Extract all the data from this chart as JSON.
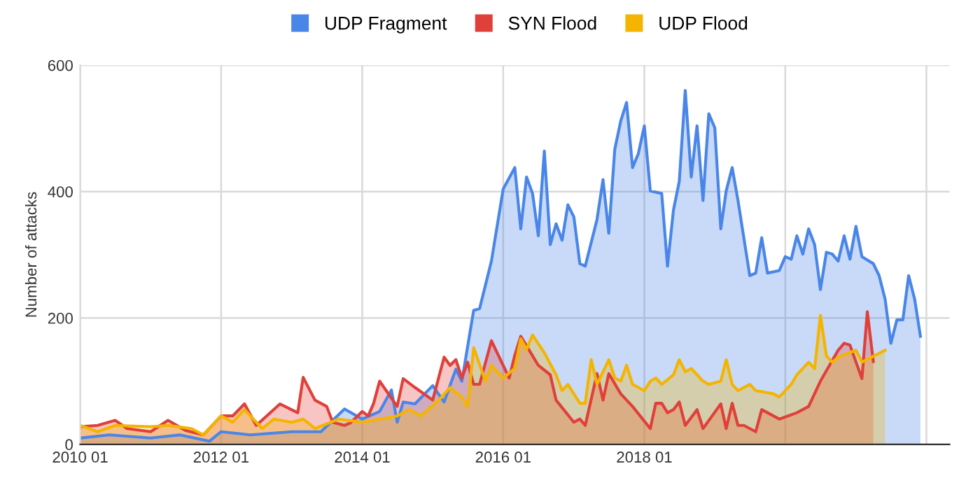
{
  "chart_data": {
    "type": "area",
    "ylabel": "Number of attacks",
    "legend": "top",
    "grid": true,
    "xlim": [
      "2010-01",
      "2022-05"
    ],
    "ylim": [
      0,
      600
    ],
    "yticks": [
      0,
      200,
      400,
      600
    ],
    "xticks": [
      {
        "value": "2010-01",
        "label": "2010 01"
      },
      {
        "value": "2012-01",
        "label": "2012 01"
      },
      {
        "value": "2014-01",
        "label": "2014 01"
      },
      {
        "value": "2016-01",
        "label": "2016 01"
      },
      {
        "value": "2018-01",
        "label": "2018 01"
      },
      {
        "value": "2020-01",
        "label": null
      },
      {
        "value": "2022-01",
        "label": null
      }
    ],
    "series": [
      {
        "name": "UDP Fragment",
        "color": "#4a86e8",
        "x": [
          "2010-01",
          "2010-06",
          "2011-01",
          "2011-06",
          "2011-11",
          "2012-01",
          "2012-06",
          "2013-01",
          "2013-06",
          "2013-08",
          "2013-10",
          "2014-01",
          "2014-04",
          "2014-06",
          "2014-07",
          "2014-08",
          "2014-10",
          "2015-01",
          "2015-03",
          "2015-05",
          "2015-06",
          "2015-08",
          "2015-09",
          "2015-11",
          "2016-01",
          "2016-03",
          "2016-04",
          "2016-05",
          "2016-06",
          "2016-07",
          "2016-08",
          "2016-09",
          "2016-10",
          "2016-11",
          "2016-12",
          "2017-01",
          "2017-02",
          "2017-03",
          "2017-05",
          "2017-06",
          "2017-07",
          "2017-08",
          "2017-09",
          "2017-10",
          "2017-11",
          "2017-12",
          "2018-01",
          "2018-02",
          "2018-04",
          "2018-05",
          "2018-06",
          "2018-07",
          "2018-08",
          "2018-09",
          "2018-10",
          "2018-11",
          "2018-12",
          "2019-01",
          "2019-02",
          "2019-03",
          "2019-04",
          "2019-05",
          "2019-07",
          "2019-08",
          "2019-09",
          "2019-10",
          "2019-12",
          "2020-01",
          "2020-02",
          "2020-03",
          "2020-04",
          "2020-05",
          "2020-06",
          "2020-07",
          "2020-08",
          "2020-09",
          "2020-10",
          "2020-11",
          "2020-12",
          "2021-01",
          "2021-02",
          "2021-04",
          "2021-05",
          "2021-06",
          "2021-07",
          "2021-08",
          "2021-09",
          "2021-10",
          "2021-11",
          "2021-12"
        ],
        "values": [
          10,
          15,
          10,
          15,
          5,
          20,
          15,
          20,
          20,
          38,
          56,
          40,
          52,
          86,
          35,
          67,
          64,
          93,
          67,
          119,
          100,
          212,
          215,
          290,
          404,
          438,
          341,
          423,
          397,
          330,
          464,
          316,
          349,
          323,
          379,
          360,
          286,
          282,
          356,
          419,
          334,
          467,
          512,
          541,
          438,
          460,
          504,
          401,
          397,
          282,
          371,
          416,
          560,
          423,
          504,
          386,
          523,
          501,
          341,
          401,
          438,
          386,
          267,
          271,
          327,
          271,
          275,
          297,
          293,
          330,
          301,
          341,
          316,
          245,
          304,
          301,
          290,
          330,
          293,
          345,
          297,
          286,
          267,
          230,
          160,
          197,
          197,
          267,
          230,
          171
        ]
      },
      {
        "name": "SYN Flood",
        "color": "#e0403a",
        "x": [
          "2010-01",
          "2010-04",
          "2010-07",
          "2010-09",
          "2011-01",
          "2011-04",
          "2011-07",
          "2011-10",
          "2012-01",
          "2012-03",
          "2012-05",
          "2012-07",
          "2012-11",
          "2013-02",
          "2013-03",
          "2013-05",
          "2013-07",
          "2013-08",
          "2013-10",
          "2013-11",
          "2014-01",
          "2014-02",
          "2014-03",
          "2014-04",
          "2014-07",
          "2014-08",
          "2014-10",
          "2015-01",
          "2015-03",
          "2015-04",
          "2015-05",
          "2015-06",
          "2015-07",
          "2015-08",
          "2015-09",
          "2015-11",
          "2016-02",
          "2016-03",
          "2016-04",
          "2016-07",
          "2016-09",
          "2016-10",
          "2017-01",
          "2017-02",
          "2017-03",
          "2017-05",
          "2017-06",
          "2017-07",
          "2017-09",
          "2017-11",
          "2018-02",
          "2018-03",
          "2018-04",
          "2018-05",
          "2018-06",
          "2018-07",
          "2018-08",
          "2018-10",
          "2018-11",
          "2019-02",
          "2019-03",
          "2019-04",
          "2019-05",
          "2019-06",
          "2019-08",
          "2019-09",
          "2019-12",
          "2020-03",
          "2020-05",
          "2020-07",
          "2020-10",
          "2020-11",
          "2020-12",
          "2021-02",
          "2021-03",
          "2021-04"
        ],
        "values": [
          28,
          30,
          38,
          25,
          20,
          38,
          22,
          15,
          45,
          45,
          64,
          30,
          64,
          50,
          106,
          70,
          60,
          35,
          30,
          34,
          52,
          45,
          65,
          100,
          60,
          104,
          90,
          70,
          138,
          125,
          134,
          105,
          130,
          95,
          95,
          164,
          105,
          141,
          171,
          125,
          110,
          70,
          35,
          40,
          30,
          112,
          70,
          112,
          80,
          60,
          25,
          65,
          65,
          50,
          55,
          67,
          30,
          55,
          25,
          64,
          25,
          65,
          30,
          30,
          20,
          55,
          40,
          50,
          60,
          100,
          149,
          160,
          157,
          104,
          210,
          131
        ]
      },
      {
        "name": "UDP Flood",
        "color": "#f4b400",
        "x": [
          "2010-01",
          "2010-04",
          "2010-07",
          "2011-01",
          "2011-04",
          "2011-08",
          "2011-10",
          "2012-01",
          "2012-03",
          "2012-05",
          "2012-08",
          "2012-10",
          "2013-01",
          "2013-03",
          "2013-05",
          "2013-09",
          "2014-01",
          "2014-04",
          "2014-07",
          "2014-09",
          "2014-11",
          "2015-02",
          "2015-04",
          "2015-06",
          "2015-07",
          "2015-08",
          "2015-10",
          "2015-11",
          "2016-01",
          "2016-03",
          "2016-04",
          "2016-05",
          "2016-06",
          "2016-08",
          "2016-10",
          "2016-11",
          "2016-12",
          "2017-02",
          "2017-03",
          "2017-04",
          "2017-05",
          "2017-07",
          "2017-08",
          "2017-09",
          "2017-10",
          "2017-11",
          "2018-01",
          "2018-02",
          "2018-03",
          "2018-04",
          "2018-06",
          "2018-07",
          "2018-08",
          "2018-09",
          "2018-11",
          "2018-12",
          "2019-02",
          "2019-03",
          "2019-04",
          "2019-05",
          "2019-07",
          "2019-08",
          "2019-11",
          "2019-12",
          "2020-02",
          "2020-03",
          "2020-05",
          "2020-06",
          "2020-07",
          "2020-08",
          "2020-09",
          "2020-10",
          "2021-01",
          "2021-02",
          "2021-06"
        ],
        "values": [
          30,
          20,
          30,
          28,
          30,
          25,
          15,
          45,
          35,
          55,
          25,
          40,
          35,
          40,
          25,
          40,
          35,
          40,
          45,
          55,
          45,
          70,
          90,
          75,
          60,
          153,
          100,
          125,
          105,
          120,
          167,
          150,
          173,
          145,
          110,
          85,
          95,
          65,
          65,
          134,
          95,
          134,
          105,
          100,
          125,
          95,
          85,
          100,
          105,
          95,
          110,
          134,
          115,
          120,
          100,
          95,
          100,
          134,
          95,
          85,
          95,
          85,
          80,
          75,
          95,
          110,
          130,
          120,
          204,
          140,
          130,
          138,
          149,
          130,
          149
        ]
      }
    ]
  }
}
